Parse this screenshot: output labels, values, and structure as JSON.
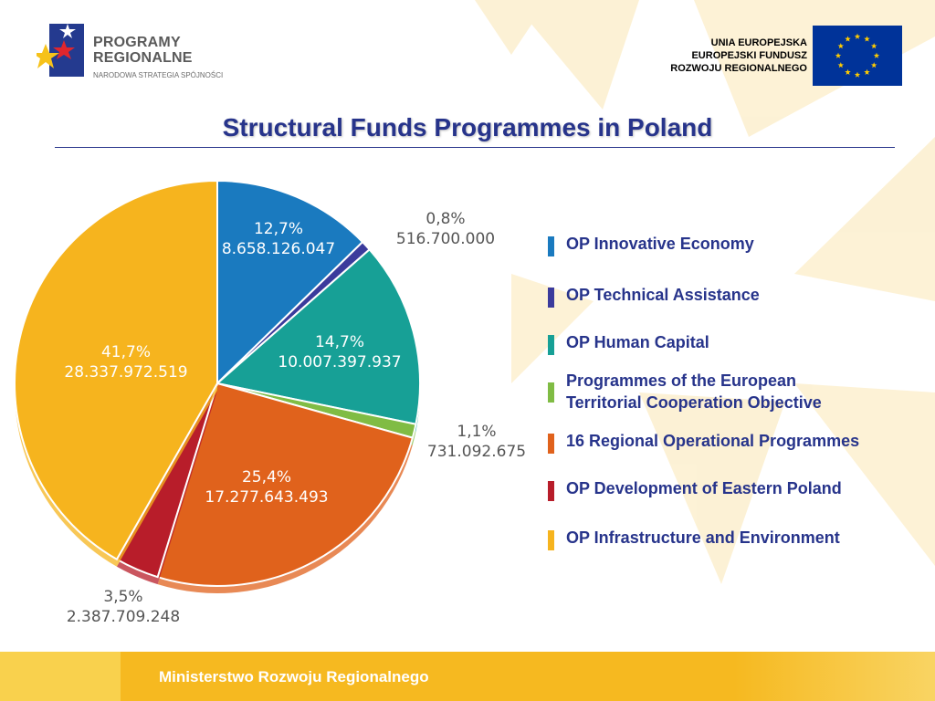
{
  "header": {
    "logo": {
      "title_line1": "PROGRAMY",
      "title_line2": "REGIONALNE",
      "subtitle": "NARODOWA STRATEGIA SPÓJNOŚCI",
      "icon": "stars-logo-icon"
    },
    "eu": {
      "line1": "UNIA EUROPEJSKA",
      "line2": "EUROPEJSKI FUNDUSZ",
      "line3": "ROZWOJU REGIONALNEGO",
      "flag_icon": "eu-flag-icon"
    }
  },
  "title": "Structural Funds Programmes in Poland",
  "chart_data": {
    "type": "pie",
    "title": "Structural Funds Programmes in Poland",
    "slices": [
      {
        "label": "OP Innovative Economy",
        "percent": 12.7,
        "percent_text": "12,7%",
        "value": 8658126047,
        "value_text": "8.658.126.047",
        "color": "#1a7abf"
      },
      {
        "label": "OP Technical Assistance",
        "percent": 0.8,
        "percent_text": "0,8%",
        "value": 516700000,
        "value_text": "516.700.000",
        "color": "#3b3b9c"
      },
      {
        "label": "OP Human Capital",
        "percent": 14.7,
        "percent_text": "14,7%",
        "value": 10007397937,
        "value_text": "10.007.397.937",
        "color": "#17a096"
      },
      {
        "label": "Programmes of the European Territorial Cooperation Objective",
        "percent": 1.1,
        "percent_text": "1,1%",
        "value": 731092675,
        "value_text": "731.092.675",
        "color": "#80bc44"
      },
      {
        "label": "16 Regional Operational Programmes",
        "percent": 25.4,
        "percent_text": "25,4%",
        "value": 17277643493,
        "value_text": "17.277.643.493",
        "color": "#e0621c"
      },
      {
        "label": "OP Development of Eastern Poland",
        "percent": 3.5,
        "percent_text": "3,5%",
        "value": 2387709248,
        "value_text": "2.387.709.248",
        "color": "#b81d2a"
      },
      {
        "label": "OP Infrastructure and Environment",
        "percent": 41.7,
        "percent_text": "41,7%",
        "value": 28337972519,
        "value_text": "28.337.972.519",
        "color": "#f6b41e"
      }
    ],
    "legend_position": "right"
  },
  "legend": {
    "items": [
      {
        "line1": "OP Innovative Economy",
        "line2": "",
        "color": "#1a7abf"
      },
      {
        "line1": "OP Technical Assistance",
        "line2": "",
        "color": "#3b3b9c"
      },
      {
        "line1": "OP Human Capital",
        "line2": "",
        "color": "#17a096"
      },
      {
        "line1": "Programmes of the European",
        "line2": "Territorial Cooperation Objective",
        "color": "#80bc44"
      },
      {
        "line1": "16 Regional Operational Programmes",
        "line2": "",
        "color": "#e0621c"
      },
      {
        "line1": "OP Development of Eastern Poland",
        "line2": "",
        "color": "#b81d2a"
      },
      {
        "line1": "OP Infrastructure and Environment",
        "line2": "",
        "color": "#f6b41e"
      }
    ]
  },
  "footer": {
    "text": "Ministerstwo Rozwoju Regionalnego"
  }
}
